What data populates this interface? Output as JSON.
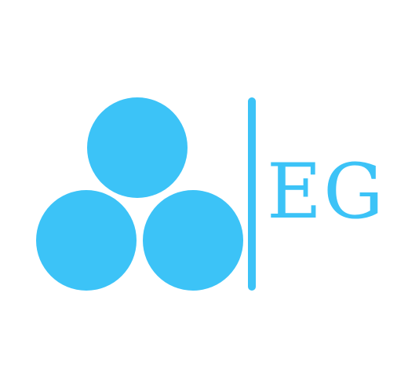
{
  "brand": {
    "initials": "EG",
    "color": "#3cc3f7",
    "background": "#ffffff"
  },
  "icons": {
    "mark": "three-circles-logo-icon",
    "divider": "vertical-bar-divider"
  }
}
